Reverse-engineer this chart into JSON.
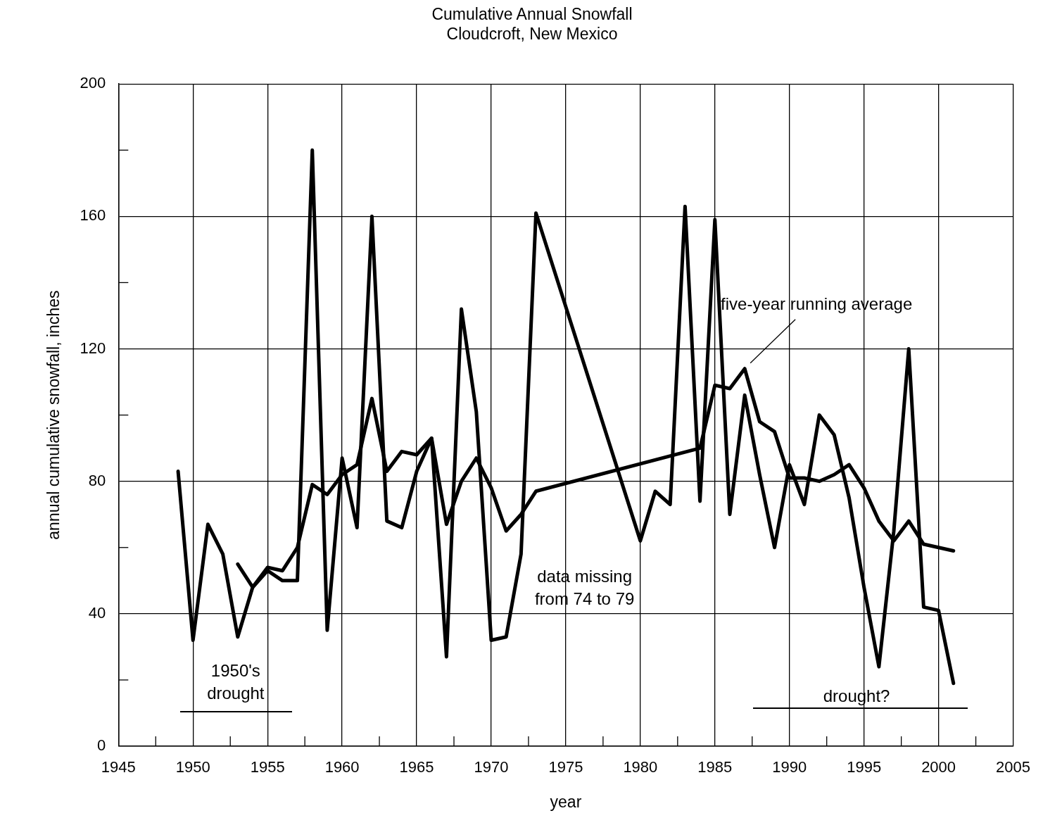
{
  "chart_data": {
    "type": "line",
    "title": "Cumulative Annual Snowfall\nCloudcroft, New Mexico",
    "xlabel": "year",
    "ylabel": "annual cumulative snowfall, inches",
    "xlim": [
      1945,
      2005
    ],
    "xticks": [
      1945,
      {
        "value": 1947.5,
        "label": null
      },
      1950,
      {
        "value": 1952.5,
        "label": null
      },
      1955,
      {
        "value": 1957.5,
        "label": null
      },
      1960,
      {
        "value": 1962.5,
        "label": null
      },
      1965,
      {
        "value": 1967.5,
        "label": null
      },
      1970,
      {
        "value": 1972.5,
        "label": null
      },
      1975,
      {
        "value": 1977.5,
        "label": null
      },
      1980,
      {
        "value": 1982.5,
        "label": null
      },
      1985,
      {
        "value": 1987.5,
        "label": null
      },
      1990,
      {
        "value": 1992.5,
        "label": null
      },
      1995,
      {
        "value": 1997.5,
        "label": null
      },
      2000,
      {
        "value": 2002.5,
        "label": null
      },
      2005
    ],
    "ylim": [
      0,
      200
    ],
    "yticks": [
      0,
      {
        "value": 20,
        "label": null
      },
      40,
      {
        "value": 60,
        "label": null
      },
      80,
      {
        "value": 100,
        "label": null
      },
      120,
      {
        "value": 140,
        "label": null
      },
      160,
      {
        "value": 180,
        "label": null
      },
      200
    ],
    "grid": true,
    "legend": false,
    "marker": "none",
    "line_style": "solid",
    "series": [
      {
        "color": "#000000",
        "x": [
          1949,
          1950,
          1951,
          1952,
          1953,
          1954,
          1955,
          1956,
          1957,
          1958,
          1959,
          1960,
          1961,
          1962,
          1963,
          1964,
          1965,
          1966,
          1967,
          1968,
          1969,
          1970,
          1971,
          1972,
          1973,
          1980,
          1981,
          1982,
          1983,
          1984,
          1985,
          1986,
          1987,
          1988,
          1989,
          1990,
          1991,
          1992,
          1993,
          1994,
          1995,
          1996,
          1997,
          1998,
          1999,
          2000,
          2001
        ],
        "values": [
          83,
          32,
          67,
          58,
          33,
          48,
          53,
          50,
          50,
          180,
          35,
          87,
          66,
          160,
          68,
          66,
          83,
          93,
          27,
          132,
          101,
          32,
          33,
          58,
          161,
          62,
          77,
          73,
          163,
          74,
          159,
          70,
          106,
          82,
          60,
          85,
          73,
          100,
          94,
          75,
          48,
          24,
          65,
          120,
          42,
          41,
          19
        ]
      },
      {
        "name": "five-year running average",
        "color": "#000000",
        "x": [
          1953,
          1954,
          1955,
          1956,
          1957,
          1958,
          1959,
          1960,
          1961,
          1962,
          1963,
          1964,
          1965,
          1966,
          1967,
          1968,
          1969,
          1970,
          1971,
          1972,
          1973,
          1984,
          1985,
          1986,
          1987,
          1988,
          1989,
          1990,
          1991,
          1992,
          1993,
          1994,
          1995,
          1996,
          1997,
          1998,
          1999,
          2000,
          2001
        ],
        "values": [
          55,
          48,
          54,
          53,
          60,
          79,
          76,
          82,
          85,
          105,
          83,
          89,
          88,
          93,
          67,
          80,
          87,
          78,
          65,
          70,
          77,
          90,
          109,
          108,
          114,
          98,
          95,
          81,
          81,
          80,
          82,
          85,
          78,
          68,
          62,
          68,
          61,
          60,
          59
        ]
      }
    ],
    "annotations": [
      "1950's\ndrought",
      "data missing\nfrom 74 to 79",
      "drought?"
    ]
  }
}
